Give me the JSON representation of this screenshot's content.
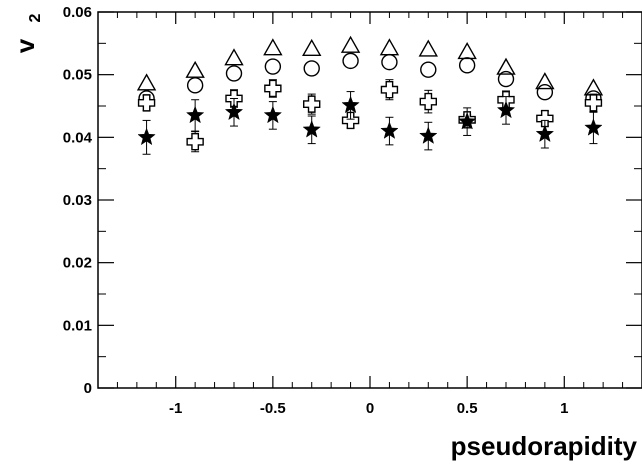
{
  "chart_data": {
    "type": "scatter",
    "title": "",
    "xlabel": "pseudorapidity",
    "ylabel": "v",
    "ylabel_sub": "2",
    "xlim": [
      -1.4,
      1.4
    ],
    "ylim": [
      0,
      0.06
    ],
    "x_ticks": [
      -1,
      -0.5,
      0,
      0.5,
      1
    ],
    "x_tick_labels": [
      "-1",
      "-0.5",
      "0",
      "0.5",
      "1"
    ],
    "y_ticks": [
      0,
      0.01,
      0.02,
      0.03,
      0.04,
      0.05,
      0.06
    ],
    "y_tick_labels": [
      "0",
      "0.01",
      "0.02",
      "0.03",
      "0.04",
      "0.05",
      "0.06"
    ],
    "grid": false,
    "legend": "none",
    "series": [
      {
        "marker": "open-triangle",
        "x": [
          -1.15,
          -0.9,
          -0.7,
          -0.5,
          -0.3,
          -0.1,
          0.1,
          0.3,
          0.5,
          0.7,
          0.9,
          1.15
        ],
        "y": [
          0.0485,
          0.0505,
          0.0525,
          0.0541,
          0.054,
          0.0545,
          0.0541,
          0.0539,
          0.0535,
          0.051,
          0.0487,
          0.0477
        ],
        "err": [
          0,
          0,
          0,
          0,
          0,
          0,
          0,
          0,
          0,
          0,
          0,
          0
        ]
      },
      {
        "marker": "open-circle",
        "x": [
          -1.15,
          -0.9,
          -0.7,
          -0.5,
          -0.3,
          -0.1,
          0.1,
          0.3,
          0.5,
          0.7,
          0.9,
          1.15
        ],
        "y": [
          0.0462,
          0.0483,
          0.0502,
          0.0513,
          0.051,
          0.0522,
          0.052,
          0.0508,
          0.0515,
          0.0493,
          0.0472,
          0.0462
        ],
        "err": [
          0,
          0,
          0,
          0,
          0,
          0,
          0,
          0,
          0,
          0,
          0,
          0
        ]
      },
      {
        "marker": "open-cross",
        "x": [
          -1.15,
          -0.9,
          -0.7,
          -0.5,
          -0.3,
          -0.1,
          0.1,
          0.3,
          0.5,
          0.7,
          0.9,
          1.15
        ],
        "y": [
          0.0455,
          0.0393,
          0.0462,
          0.0478,
          0.0453,
          0.0427,
          0.0476,
          0.0457,
          0.0428,
          0.046,
          0.043,
          0.0455
        ],
        "err": [
          0.0012,
          0.0016,
          0.0014,
          0.0014,
          0.0016,
          0.0012,
          0.0016,
          0.0018,
          0.0008,
          0.0014,
          0.0012,
          0.0014
        ]
      },
      {
        "marker": "filled-star",
        "x": [
          -1.15,
          -0.9,
          -0.7,
          -0.5,
          -0.3,
          -0.1,
          0.1,
          0.3,
          0.5,
          0.7,
          0.9,
          1.15
        ],
        "y": [
          0.04,
          0.0435,
          0.044,
          0.0435,
          0.0412,
          0.0451,
          0.041,
          0.0402,
          0.0425,
          0.0443,
          0.0405,
          0.0415
        ],
        "err": [
          0.0027,
          0.0025,
          0.0022,
          0.0022,
          0.0022,
          0.0022,
          0.0022,
          0.0022,
          0.0022,
          0.0022,
          0.0022,
          0.0025
        ]
      }
    ]
  }
}
